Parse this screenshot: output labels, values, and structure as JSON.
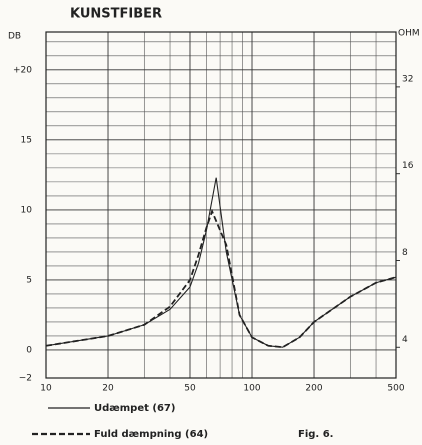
{
  "chart_data": {
    "type": "line",
    "title": "KUNSTFIBER",
    "ylabel": "DB",
    "y2label": "OHM",
    "annotation": "Fig. 6.",
    "xscale": "log",
    "xlim": [
      10,
      500
    ],
    "xticks": [
      10,
      20,
      50,
      100,
      200,
      500
    ],
    "xminorticks": [
      30,
      40,
      60,
      70,
      80,
      90,
      300,
      400
    ],
    "ylim": [
      -2,
      22.7
    ],
    "yticks": [
      {
        "value": -2,
        "label": "−2"
      },
      0,
      5,
      10,
      15,
      {
        "value": 20,
        "label": "+20"
      }
    ],
    "yminorticks": [
      1,
      2,
      3,
      4,
      6,
      7,
      8,
      9,
      11,
      12,
      13,
      14,
      16,
      17,
      18,
      19,
      21,
      22
    ],
    "y2scale": "log",
    "y2lim": [
      3.13,
      49.6
    ],
    "y2ticks": [
      4,
      8,
      16,
      32
    ],
    "grid": true,
    "series": [
      {
        "name": "Udæmpet (67)",
        "color": "#222222",
        "dash": false,
        "x": [
          10,
          20,
          30,
          40,
          50,
          55,
          60,
          67,
          75,
          87,
          100,
          120,
          141,
          170,
          200,
          300,
          400,
          500
        ],
        "values": [
          0.3,
          1.0,
          1.8,
          2.9,
          4.5,
          6.2,
          8.5,
          12.3,
          7,
          2.5,
          0.9,
          0.3,
          0.2,
          0.9,
          2.0,
          3.8,
          4.8,
          5.2
        ]
      },
      {
        "name": "Fuld dæmpning (64)",
        "color": "#222222",
        "dash": true,
        "x": [
          10,
          20,
          30,
          40,
          50,
          55,
          60,
          64,
          75,
          87,
          100,
          120,
          141,
          170,
          200,
          300,
          400,
          500
        ],
        "values": [
          0.3,
          1.0,
          1.8,
          3.1,
          5.0,
          6.8,
          8.7,
          9.9,
          7.5,
          2.5,
          0.9,
          0.3,
          0.2,
          0.9,
          2.0,
          3.8,
          4.8,
          5.2
        ]
      }
    ]
  }
}
